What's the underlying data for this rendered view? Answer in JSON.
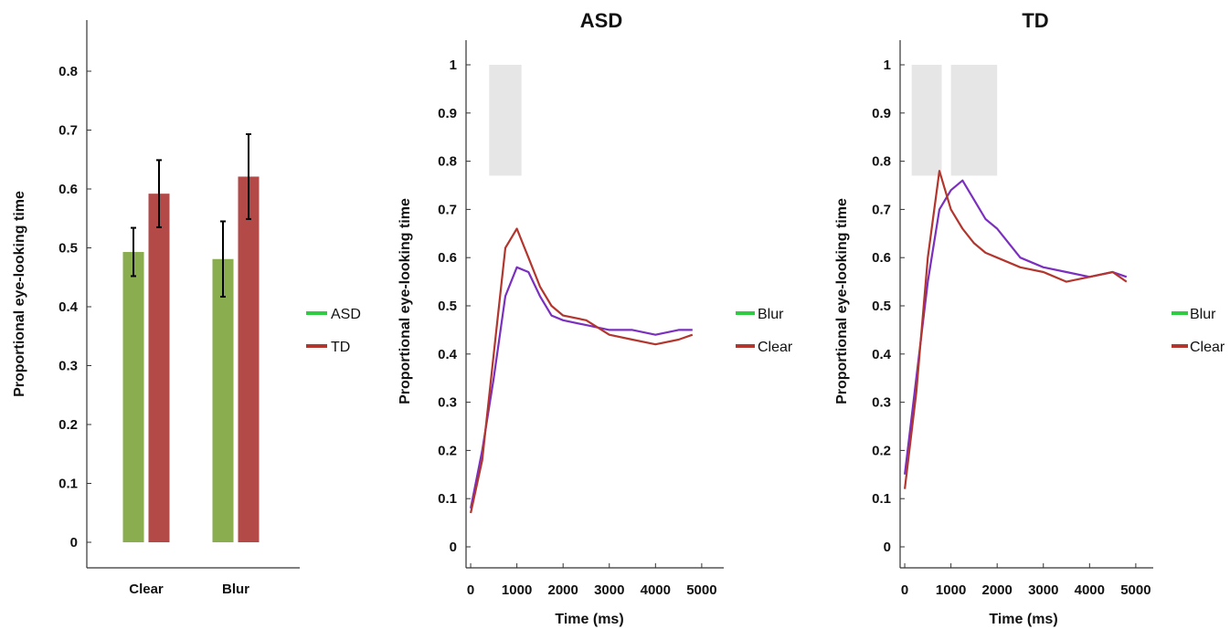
{
  "colors": {
    "blur": "#8aae4f",
    "clear": "#b44a48",
    "asd_line": "#b3362e",
    "td_line": "#7b2fbf",
    "shade": "#e6e6e6",
    "err": "#000000"
  },
  "chart_data": [
    {
      "type": "bar",
      "title": "",
      "xlabel": "",
      "ylabel": "Proportional eye-looking time",
      "ylim": [
        0,
        0.9
      ],
      "yticks": [
        "0",
        "0.1",
        "0.2",
        "0.3",
        "0.4",
        "0.5",
        "0.6",
        "0.7",
        "0.8"
      ],
      "categories": [
        "Clear",
        "Blur"
      ],
      "series": [
        {
          "color_key": "blur",
          "values": [
            0.493,
            0.481
          ],
          "err": [
            0.041,
            0.064
          ]
        },
        {
          "color_key": "clear",
          "values": [
            0.592,
            0.621
          ],
          "err": [
            0.057,
            0.072
          ]
        }
      ],
      "grid": false
    },
    {
      "type": "line",
      "title": "ASD",
      "xlabel": "Time (ms)",
      "ylabel": "Proportional eye-looking time",
      "xlim": [
        -100,
        5200
      ],
      "ylim": [
        0,
        1
      ],
      "xticks": [
        "0",
        "1000",
        "2000",
        "3000",
        "4000",
        "5000"
      ],
      "yticks": [
        "0",
        "0.1",
        "0.2",
        "0.3",
        "0.4",
        "0.5",
        "0.6",
        "0.7",
        "0.8",
        "0.9",
        "1"
      ],
      "shaded_x": [
        [
          400,
          1100
        ]
      ],
      "legend": {
        "placement": "middle",
        "entries": [
          "ASD",
          "TD",
          "Blur",
          "Clear"
        ]
      },
      "series": [
        {
          "name": "Blur",
          "color_key": "td_line",
          "x": [
            0,
            250,
            500,
            750,
            1000,
            1250,
            1500,
            1750,
            2000,
            2500,
            3000,
            3500,
            4000,
            4500,
            4800
          ],
          "values": [
            0.08,
            0.2,
            0.35,
            0.52,
            0.58,
            0.57,
            0.52,
            0.48,
            0.47,
            0.46,
            0.45,
            0.45,
            0.44,
            0.45,
            0.45
          ]
        },
        {
          "name": "Clear",
          "color_key": "asd_line",
          "x": [
            0,
            250,
            500,
            750,
            1000,
            1250,
            1500,
            1750,
            2000,
            2500,
            3000,
            3500,
            4000,
            4500,
            4800
          ],
          "values": [
            0.07,
            0.18,
            0.4,
            0.62,
            0.66,
            0.6,
            0.54,
            0.5,
            0.48,
            0.47,
            0.44,
            0.43,
            0.42,
            0.43,
            0.44
          ]
        }
      ],
      "grid": false
    },
    {
      "type": "line",
      "title": "TD",
      "xlabel": "Time (ms)",
      "ylabel": "Proportional eye-looking time",
      "xlim": [
        -100,
        5200
      ],
      "ylim": [
        0,
        1
      ],
      "xticks": [
        "0",
        "1000",
        "2000",
        "3000",
        "4000",
        "5000"
      ],
      "yticks": [
        "0",
        "0.1",
        "0.2",
        "0.3",
        "0.4",
        "0.5",
        "0.6",
        "0.7",
        "0.8",
        "0.9",
        "1"
      ],
      "shaded_x": [
        [
          150,
          800
        ],
        [
          1000,
          2000
        ]
      ],
      "legend": {
        "placement": "middle-right",
        "entries": [
          "Blur",
          "Clear"
        ]
      },
      "series": [
        {
          "name": "Blur",
          "color_key": "td_line",
          "x": [
            0,
            250,
            500,
            750,
            1000,
            1250,
            1500,
            1750,
            2000,
            2500,
            3000,
            3500,
            4000,
            4500,
            4800
          ],
          "values": [
            0.15,
            0.35,
            0.55,
            0.7,
            0.74,
            0.76,
            0.72,
            0.68,
            0.66,
            0.6,
            0.58,
            0.57,
            0.56,
            0.57,
            0.56
          ]
        },
        {
          "name": "Clear",
          "color_key": "asd_line",
          "x": [
            0,
            250,
            500,
            750,
            1000,
            1250,
            1500,
            1750,
            2000,
            2500,
            3000,
            3500,
            4000,
            4500,
            4800
          ],
          "values": [
            0.12,
            0.32,
            0.6,
            0.78,
            0.7,
            0.66,
            0.63,
            0.61,
            0.6,
            0.58,
            0.57,
            0.55,
            0.56,
            0.57,
            0.55
          ]
        }
      ],
      "grid": false
    }
  ]
}
